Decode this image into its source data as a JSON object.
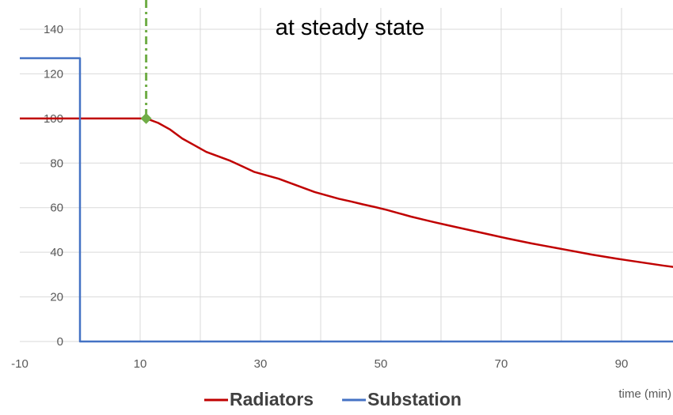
{
  "chart_data": {
    "type": "line",
    "title": "",
    "annotation": "at steady state",
    "xlabel": "time (min)",
    "ylabel": "",
    "xlim": [
      -10,
      100
    ],
    "ylim": [
      0,
      140
    ],
    "x_ticks": [
      -10,
      10,
      30,
      50,
      70,
      90
    ],
    "y_ticks": [
      0,
      20,
      40,
      60,
      80,
      100,
      120,
      140
    ],
    "grid": {
      "vertical": true,
      "horizontal": true
    },
    "legend": {
      "position": "bottom"
    },
    "series": [
      {
        "name": "Radiators",
        "color": "#c00000",
        "points": [
          [
            -10,
            100
          ],
          [
            0,
            100
          ],
          [
            5,
            100
          ],
          [
            11,
            100
          ],
          [
            13,
            98
          ],
          [
            15,
            95
          ],
          [
            17,
            91
          ],
          [
            19,
            88
          ],
          [
            21,
            85
          ],
          [
            23,
            83
          ],
          [
            25,
            81
          ],
          [
            27,
            78.5
          ],
          [
            29,
            76
          ],
          [
            31,
            74.5
          ],
          [
            33,
            73
          ],
          [
            35,
            71
          ],
          [
            37,
            69
          ],
          [
            39,
            67
          ],
          [
            41,
            65.5
          ],
          [
            43,
            64
          ],
          [
            45,
            62.8
          ],
          [
            47,
            61.5
          ],
          [
            49,
            60.3
          ],
          [
            51,
            59
          ],
          [
            53,
            57.5
          ],
          [
            55,
            56
          ],
          [
            57,
            54.7
          ],
          [
            59,
            53.4
          ],
          [
            61,
            52.2
          ],
          [
            63,
            51
          ],
          [
            65,
            49.8
          ],
          [
            67,
            48.6
          ],
          [
            69,
            47.4
          ],
          [
            71,
            46.2
          ],
          [
            73,
            45.1
          ],
          [
            75,
            44
          ],
          [
            77,
            43
          ],
          [
            79,
            42
          ],
          [
            81,
            41
          ],
          [
            83,
            40
          ],
          [
            85,
            39
          ],
          [
            87,
            38.1
          ],
          [
            89,
            37.2
          ],
          [
            91,
            36.4
          ],
          [
            93,
            35.6
          ],
          [
            95,
            34.8
          ],
          [
            97,
            34
          ],
          [
            99,
            33.3
          ]
        ]
      },
      {
        "name": "Substation",
        "color": "#4472c4",
        "points": [
          [
            -10,
            127
          ],
          [
            0,
            127
          ],
          [
            0,
            0
          ],
          [
            99,
            0
          ]
        ]
      }
    ],
    "marker": {
      "x": 11,
      "y": 100,
      "shape": "diamond",
      "color": "#70ad47",
      "line_style": "dash-dot vertical"
    }
  }
}
